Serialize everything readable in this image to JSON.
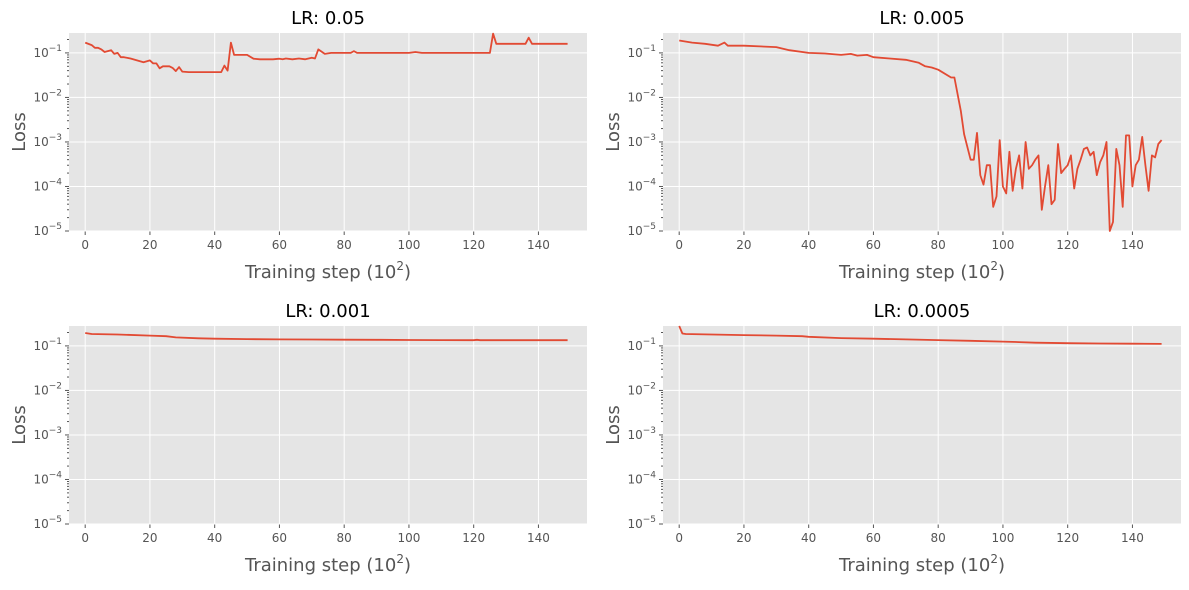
{
  "chart_data": [
    {
      "type": "line",
      "title": "LR: 0.05",
      "xlabel_text": "Training step (10",
      "xlabel_sup": "2",
      "xlabel_close": ")",
      "ylabel": "Loss",
      "yscale": "log",
      "xlim": [
        -5,
        155
      ],
      "ylim": [
        1e-05,
        0.28
      ],
      "xticks": [
        0,
        20,
        40,
        60,
        80,
        100,
        120,
        140
      ],
      "yticks": [
        {
          "value": 0.1,
          "base": "10",
          "exp": "−1"
        },
        {
          "value": 0.01,
          "base": "10",
          "exp": "−2"
        },
        {
          "value": 0.001,
          "base": "10",
          "exp": "−3"
        },
        {
          "value": 0.0001,
          "base": "10",
          "exp": "−4"
        },
        {
          "value": 1e-05,
          "base": "10",
          "exp": "−5"
        }
      ],
      "grid": true,
      "series": [
        {
          "color": "#e24a33",
          "x": [
            0,
            2,
            3,
            4,
            5,
            6,
            7,
            8,
            9,
            10,
            11,
            12,
            14,
            16,
            18,
            20,
            21,
            22,
            23,
            24,
            26,
            27,
            28,
            29,
            30,
            32,
            34,
            36,
            38,
            40,
            42,
            43,
            44,
            45,
            46,
            48,
            50,
            52,
            54,
            56,
            58,
            60,
            61,
            62,
            64,
            66,
            68,
            70,
            71,
            72,
            74,
            76,
            78,
            80,
            82,
            83,
            84,
            86,
            88,
            90,
            92,
            94,
            96,
            98,
            100,
            102,
            104,
            106,
            108,
            110,
            112,
            114,
            116,
            118,
            120,
            121,
            122,
            124,
            125,
            126,
            127,
            128,
            130,
            132,
            134,
            136,
            137,
            138,
            140,
            142,
            144,
            146,
            148,
            149
          ],
          "y": [
            0.17,
            0.15,
            0.13,
            0.13,
            0.12,
            0.105,
            0.11,
            0.115,
            0.095,
            0.1,
            0.08,
            0.08,
            0.075,
            0.068,
            0.062,
            0.068,
            0.058,
            0.058,
            0.045,
            0.05,
            0.05,
            0.046,
            0.039,
            0.048,
            0.038,
            0.037,
            0.037,
            0.037,
            0.037,
            0.037,
            0.037,
            0.052,
            0.04,
            0.17,
            0.09,
            0.09,
            0.09,
            0.074,
            0.072,
            0.072,
            0.072,
            0.074,
            0.072,
            0.075,
            0.072,
            0.075,
            0.072,
            0.078,
            0.075,
            0.12,
            0.095,
            0.1,
            0.1,
            0.1,
            0.1,
            0.11,
            0.1,
            0.1,
            0.1,
            0.1,
            0.1,
            0.1,
            0.1,
            0.1,
            0.1,
            0.105,
            0.1,
            0.1,
            0.1,
            0.1,
            0.1,
            0.1,
            0.1,
            0.1,
            0.1,
            0.1,
            0.1,
            0.1,
            0.1,
            0.27,
            0.16,
            0.16,
            0.16,
            0.16,
            0.16,
            0.16,
            0.22,
            0.16,
            0.16,
            0.16,
            0.16,
            0.16,
            0.16,
            0.16
          ]
        }
      ]
    },
    {
      "type": "line",
      "title": "LR: 0.005",
      "xlabel_text": "Training step (10",
      "xlabel_sup": "2",
      "xlabel_close": ")",
      "ylabel": "Loss",
      "yscale": "log",
      "xlim": [
        -5,
        155
      ],
      "ylim": [
        1e-05,
        0.28
      ],
      "xticks": [
        0,
        20,
        40,
        60,
        80,
        100,
        120,
        140
      ],
      "yticks": [
        {
          "value": 0.1,
          "base": "10",
          "exp": "−1"
        },
        {
          "value": 0.01,
          "base": "10",
          "exp": "−2"
        },
        {
          "value": 0.001,
          "base": "10",
          "exp": "−3"
        },
        {
          "value": 0.0001,
          "base": "10",
          "exp": "−4"
        },
        {
          "value": 1e-05,
          "base": "10",
          "exp": "−5"
        }
      ],
      "grid": true,
      "series": [
        {
          "color": "#e24a33",
          "x": [
            0,
            4,
            8,
            12,
            14,
            15,
            20,
            25,
            30,
            34,
            40,
            45,
            50,
            53,
            55,
            58,
            60,
            65,
            70,
            74,
            76,
            78,
            80,
            84,
            85,
            87,
            88,
            90,
            91,
            92,
            93,
            94,
            95,
            96,
            97,
            98,
            99,
            100,
            101,
            102,
            103,
            104,
            105,
            106,
            107,
            108,
            109,
            110,
            111,
            112,
            113,
            114,
            115,
            116,
            117,
            118,
            119,
            120,
            121,
            122,
            123,
            124,
            125,
            126,
            127,
            128,
            129,
            130,
            131,
            132,
            133,
            134,
            135,
            136,
            137,
            138,
            139,
            140,
            141,
            142,
            143,
            144,
            145,
            146,
            147,
            148,
            149
          ],
          "y": [
            0.19,
            0.17,
            0.16,
            0.145,
            0.17,
            0.145,
            0.145,
            0.14,
            0.135,
            0.115,
            0.1,
            0.097,
            0.09,
            0.095,
            0.087,
            0.09,
            0.08,
            0.075,
            0.07,
            0.06,
            0.05,
            0.047,
            0.042,
            0.028,
            0.028,
            0.005,
            0.0015,
            0.0004,
            0.0004,
            0.0016,
            0.00018,
            0.00011,
            0.0003,
            0.0003,
            3.5e-05,
            6e-05,
            0.0011,
            0.0001,
            7e-05,
            0.0006,
            8e-05,
            0.00025,
            0.0005,
            9e-05,
            0.001,
            0.00025,
            0.0003,
            0.0004,
            0.0005,
            3e-05,
            0.0001,
            0.0003,
            4e-05,
            5e-05,
            0.0009,
            0.0002,
            0.00025,
            0.0003,
            0.0005,
            9e-05,
            0.00025,
            0.0004,
            0.0007,
            0.00075,
            0.0005,
            0.0006,
            0.00018,
            0.00035,
            0.0005,
            0.001,
            1e-05,
            1.6e-05,
            0.0007,
            0.0003,
            3.5e-05,
            0.0014,
            0.0014,
            0.0001,
            0.0003,
            0.0004,
            0.0013,
            0.0003,
            8e-05,
            0.0005,
            0.00045,
            0.0009,
            0.0011
          ]
        }
      ]
    },
    {
      "type": "line",
      "title": "LR: 0.001",
      "xlabel_text": "Training step (10",
      "xlabel_sup": "2",
      "xlabel_close": ")",
      "ylabel": "Loss",
      "yscale": "log",
      "xlim": [
        -5,
        155
      ],
      "ylim": [
        1e-05,
        0.28
      ],
      "xticks": [
        0,
        20,
        40,
        60,
        80,
        100,
        120,
        140
      ],
      "yticks": [
        {
          "value": 0.1,
          "base": "10",
          "exp": "−1"
        },
        {
          "value": 0.01,
          "base": "10",
          "exp": "−2"
        },
        {
          "value": 0.001,
          "base": "10",
          "exp": "−3"
        },
        {
          "value": 0.0001,
          "base": "10",
          "exp": "−4"
        },
        {
          "value": 1e-05,
          "base": "10",
          "exp": "−5"
        }
      ],
      "grid": true,
      "series": [
        {
          "color": "#e24a33",
          "x": [
            0,
            2,
            10,
            20,
            25,
            28,
            35,
            40,
            50,
            60,
            70,
            80,
            90,
            100,
            110,
            120,
            121,
            122,
            130,
            140,
            149
          ],
          "y": [
            0.195,
            0.185,
            0.18,
            0.17,
            0.165,
            0.155,
            0.148,
            0.145,
            0.142,
            0.14,
            0.139,
            0.138,
            0.137,
            0.136,
            0.135,
            0.134,
            0.137,
            0.134,
            0.134,
            0.134,
            0.134
          ]
        }
      ]
    },
    {
      "type": "line",
      "title": "LR: 0.0005",
      "xlabel_text": "Training step (10",
      "xlabel_sup": "2",
      "xlabel_close": ")",
      "ylabel": "Loss",
      "yscale": "log",
      "xlim": [
        -5,
        155
      ],
      "ylim": [
        1e-05,
        0.28
      ],
      "xticks": [
        0,
        20,
        40,
        60,
        80,
        100,
        120,
        140
      ],
      "yticks": [
        {
          "value": 0.1,
          "base": "10",
          "exp": "−1"
        },
        {
          "value": 0.01,
          "base": "10",
          "exp": "−2"
        },
        {
          "value": 0.001,
          "base": "10",
          "exp": "−3"
        },
        {
          "value": 0.0001,
          "base": "10",
          "exp": "−4"
        },
        {
          "value": 1e-05,
          "base": "10",
          "exp": "−5"
        }
      ],
      "grid": true,
      "series": [
        {
          "color": "#e24a33",
          "x": [
            0,
            1,
            2,
            10,
            20,
            30,
            38,
            40,
            50,
            60,
            70,
            80,
            90,
            100,
            105,
            110,
            120,
            130,
            140,
            149
          ],
          "y": [
            0.28,
            0.19,
            0.185,
            0.18,
            0.175,
            0.17,
            0.165,
            0.16,
            0.15,
            0.145,
            0.14,
            0.135,
            0.13,
            0.125,
            0.122,
            0.118,
            0.115,
            0.113,
            0.112,
            0.111
          ]
        }
      ]
    }
  ]
}
